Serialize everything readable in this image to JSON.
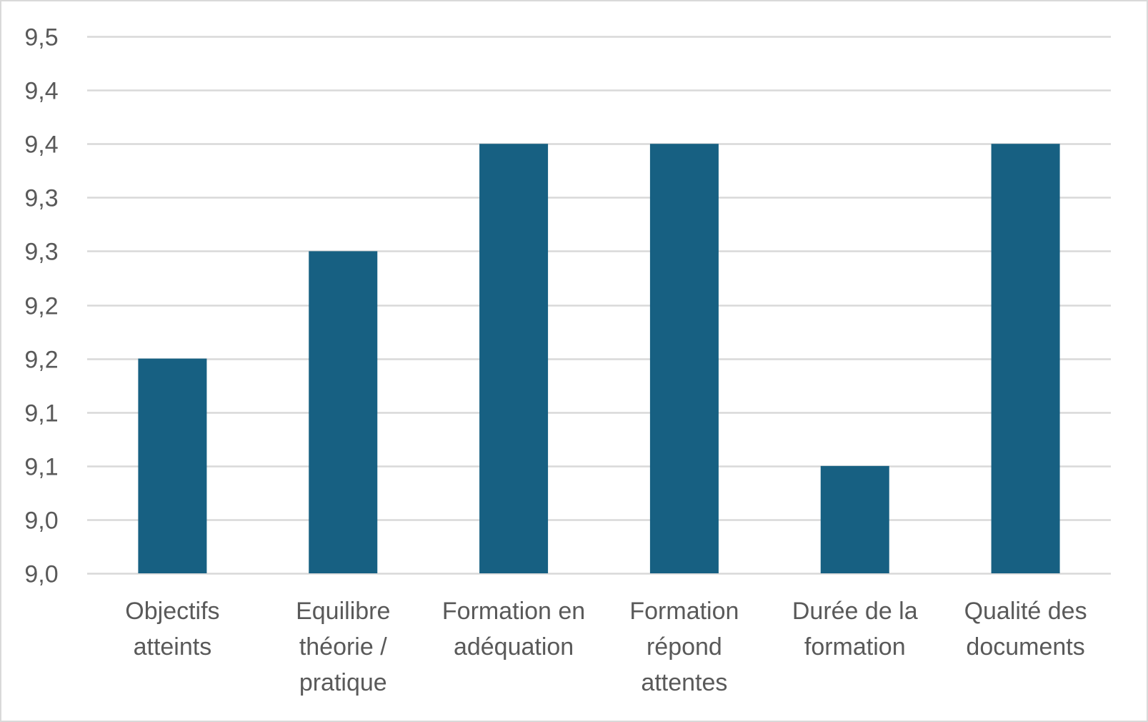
{
  "chart_data": {
    "type": "bar",
    "title": "",
    "xlabel": "",
    "ylabel": "",
    "categories": [
      [
        "Objectifs",
        "atteints"
      ],
      [
        "Equilibre",
        "théorie /",
        "pratique"
      ],
      [
        "Formation en",
        "adéquation"
      ],
      [
        "Formation",
        "répond",
        "attentes"
      ],
      [
        "Durée de la",
        "formation"
      ],
      [
        "Qualité des",
        "documents"
      ]
    ],
    "values": [
      9.18,
      9.28,
      9.38,
      9.38,
      9.08,
      9.38
    ],
    "ylim": [
      8.98,
      9.48
    ],
    "yticks": [
      8.98,
      9.03,
      9.08,
      9.13,
      9.18,
      9.23,
      9.28,
      9.33,
      9.38,
      9.43,
      9.48
    ],
    "ytick_labels": [
      "9,0",
      "9,0",
      "9,1",
      "9,1",
      "9,2",
      "9,2",
      "9,3",
      "9,3",
      "9,4",
      "9,4",
      "9,5"
    ],
    "grid": true,
    "bar_color": "#176082",
    "grid_color": "#d9d9d9",
    "text_color": "#595959"
  }
}
